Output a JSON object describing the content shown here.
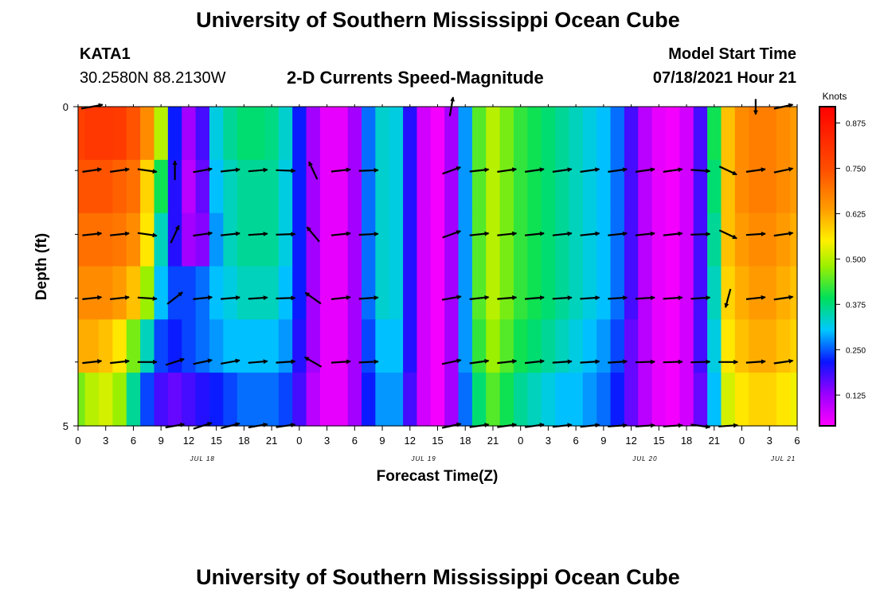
{
  "page_title": "University of Southern Mississippi Ocean Cube",
  "station": {
    "name": "KATA1",
    "coords": "30.2580N  88.2130W"
  },
  "model": {
    "label": "Model Start Time",
    "value": "07/18/2021 Hour 21"
  },
  "footer_title": "University of Southern Mississippi Ocean Cube",
  "colors": {
    "vector": "#000000",
    "frame": "#000000"
  },
  "chart_data": {
    "type": "heatmap",
    "title": "2-D Currents Speed-Magnitude",
    "xlabel": "Forecast Time(Z)",
    "ylabel": "Depth (ft)",
    "ylim": [
      0,
      5
    ],
    "y_ticks": [
      "0",
      "5"
    ],
    "x_tick_labels": [
      "0",
      "3",
      "6",
      "9",
      "12",
      "15",
      "18",
      "21",
      "0",
      "3",
      "6",
      "9",
      "12",
      "15",
      "18",
      "21",
      "0",
      "3",
      "6",
      "9",
      "12",
      "15",
      "18",
      "21",
      "0",
      "3",
      "6"
    ],
    "date_labels": [
      {
        "text": "JUL 18",
        "tick_index": 4.5
      },
      {
        "text": "JUL 19",
        "tick_index": 12.5
      },
      {
        "text": "JUL 20",
        "tick_index": 20.5
      },
      {
        "text": "JUL 21",
        "tick_index": 25.5
      }
    ],
    "x_hours_range": [
      0,
      78
    ],
    "colorbar": {
      "unit": "Knots",
      "min": 0.04,
      "max": 0.92,
      "ticks": [
        "0.125",
        "0.250",
        "0.375",
        "0.500",
        "0.625",
        "0.750",
        "0.875"
      ],
      "tick_values": [
        0.125,
        0.25,
        0.375,
        0.5,
        0.625,
        0.75,
        0.875
      ]
    },
    "speed_grid": {
      "depth_levels": 5,
      "hours": [
        0,
        1.5,
        3,
        4.5,
        6,
        7.5,
        9,
        10.5,
        12,
        13.5,
        15,
        16.5,
        18,
        19.5,
        21,
        22.5,
        24,
        25.5,
        27,
        28.5,
        30,
        31.5,
        33,
        34.5,
        36,
        37.5,
        39,
        40.5,
        42,
        43.5,
        45,
        46.5,
        48,
        49.5,
        51,
        52.5,
        54,
        55.5,
        57,
        58.5,
        60,
        61.5,
        63,
        64.5,
        66,
        67.5,
        69,
        70.5,
        72,
        73.5,
        75,
        76.5,
        78
      ],
      "values": [
        [
          0.78,
          0.8,
          0.8,
          0.79,
          0.74,
          0.66,
          0.5,
          0.22,
          0.12,
          0.18,
          0.32,
          0.36,
          0.38,
          0.38,
          0.37,
          0.33,
          0.22,
          0.12,
          0.06,
          0.06,
          0.12,
          0.26,
          0.33,
          0.32,
          0.2,
          0.08,
          0.05,
          0.12,
          0.28,
          0.44,
          0.5,
          0.46,
          0.42,
          0.4,
          0.38,
          0.36,
          0.34,
          0.32,
          0.3,
          0.26,
          0.18,
          0.1,
          0.06,
          0.05,
          0.08,
          0.18,
          0.4,
          0.6,
          0.66,
          0.68,
          0.68,
          0.66,
          0.64
        ],
        [
          0.74,
          0.74,
          0.74,
          0.72,
          0.7,
          0.58,
          0.4,
          0.2,
          0.1,
          0.16,
          0.3,
          0.34,
          0.36,
          0.36,
          0.36,
          0.32,
          0.22,
          0.12,
          0.06,
          0.06,
          0.12,
          0.26,
          0.33,
          0.32,
          0.2,
          0.08,
          0.05,
          0.12,
          0.28,
          0.44,
          0.5,
          0.46,
          0.42,
          0.4,
          0.38,
          0.36,
          0.34,
          0.32,
          0.3,
          0.26,
          0.18,
          0.1,
          0.06,
          0.05,
          0.08,
          0.18,
          0.38,
          0.6,
          0.66,
          0.68,
          0.68,
          0.66,
          0.64
        ],
        [
          0.7,
          0.7,
          0.7,
          0.69,
          0.66,
          0.56,
          0.34,
          0.2,
          0.12,
          0.14,
          0.28,
          0.34,
          0.36,
          0.36,
          0.36,
          0.32,
          0.22,
          0.12,
          0.06,
          0.06,
          0.12,
          0.26,
          0.33,
          0.32,
          0.2,
          0.08,
          0.05,
          0.12,
          0.28,
          0.44,
          0.5,
          0.46,
          0.42,
          0.4,
          0.38,
          0.36,
          0.34,
          0.32,
          0.3,
          0.26,
          0.18,
          0.1,
          0.06,
          0.05,
          0.08,
          0.18,
          0.36,
          0.6,
          0.64,
          0.66,
          0.66,
          0.64,
          0.62
        ],
        [
          0.66,
          0.66,
          0.66,
          0.64,
          0.6,
          0.48,
          0.3,
          0.24,
          0.24,
          0.26,
          0.3,
          0.32,
          0.34,
          0.34,
          0.34,
          0.3,
          0.22,
          0.12,
          0.06,
          0.06,
          0.12,
          0.26,
          0.33,
          0.32,
          0.2,
          0.08,
          0.05,
          0.12,
          0.28,
          0.44,
          0.5,
          0.46,
          0.42,
          0.4,
          0.38,
          0.36,
          0.34,
          0.32,
          0.3,
          0.26,
          0.18,
          0.1,
          0.06,
          0.05,
          0.08,
          0.18,
          0.34,
          0.58,
          0.62,
          0.64,
          0.64,
          0.62,
          0.6
        ],
        [
          0.62,
          0.62,
          0.6,
          0.56,
          0.46,
          0.34,
          0.24,
          0.22,
          0.24,
          0.26,
          0.28,
          0.3,
          0.3,
          0.3,
          0.3,
          0.28,
          0.2,
          0.12,
          0.06,
          0.06,
          0.12,
          0.24,
          0.3,
          0.3,
          0.2,
          0.08,
          0.05,
          0.12,
          0.28,
          0.42,
          0.48,
          0.44,
          0.4,
          0.38,
          0.36,
          0.34,
          0.32,
          0.3,
          0.28,
          0.24,
          0.16,
          0.1,
          0.06,
          0.05,
          0.08,
          0.18,
          0.32,
          0.56,
          0.6,
          0.62,
          0.62,
          0.6,
          0.58
        ],
        [
          0.46,
          0.5,
          0.52,
          0.48,
          0.36,
          0.24,
          0.18,
          0.16,
          0.18,
          0.2,
          0.22,
          0.24,
          0.26,
          0.26,
          0.26,
          0.24,
          0.18,
          0.1,
          0.06,
          0.06,
          0.12,
          0.22,
          0.28,
          0.28,
          0.18,
          0.08,
          0.05,
          0.12,
          0.26,
          0.38,
          0.44,
          0.4,
          0.36,
          0.34,
          0.32,
          0.3,
          0.3,
          0.28,
          0.26,
          0.22,
          0.16,
          0.1,
          0.06,
          0.05,
          0.08,
          0.16,
          0.3,
          0.52,
          0.56,
          0.58,
          0.58,
          0.56,
          0.54
        ]
      ]
    },
    "vectors": {
      "depth_rows": 6,
      "hours": [
        1.5,
        4.5,
        7.5,
        10.5,
        13.5,
        16.5,
        19.5,
        22.5,
        25.5,
        28.5,
        31.5,
        34.5,
        37.5,
        40.5,
        43.5,
        46.5,
        49.5,
        52.5,
        55.5,
        58.5,
        61.5,
        64.5,
        67.5,
        70.5,
        73.5,
        76.5
      ],
      "note": "direction in degrees (0=east, 90=north), length relative 0..1",
      "dir_deg": [
        [
          10,
          12,
          0,
          0,
          0,
          0,
          0,
          0,
          0,
          0,
          0,
          0,
          0,
          80,
          0,
          10,
          0,
          0,
          0,
          0,
          0,
          0,
          0,
          0,
          -90,
          12
        ],
        [
          8,
          8,
          -8,
          90,
          10,
          6,
          5,
          -2,
          115,
          6,
          2,
          0,
          0,
          20,
          6,
          8,
          8,
          8,
          8,
          8,
          8,
          8,
          -4,
          -25,
          8,
          12
        ],
        [
          6,
          6,
          -8,
          65,
          8,
          6,
          4,
          2,
          130,
          6,
          3,
          0,
          0,
          20,
          6,
          6,
          6,
          6,
          6,
          6,
          6,
          6,
          2,
          -25,
          4,
          8
        ],
        [
          6,
          6,
          -4,
          38,
          6,
          5,
          4,
          2,
          145,
          6,
          4,
          0,
          0,
          10,
          6,
          5,
          5,
          4,
          4,
          4,
          4,
          4,
          4,
          -105,
          6,
          8
        ],
        [
          6,
          6,
          0,
          18,
          12,
          10,
          5,
          4,
          150,
          4,
          3,
          2,
          0,
          12,
          8,
          6,
          6,
          4,
          4,
          4,
          2,
          2,
          2,
          0,
          4,
          8
        ],
        [
          0,
          0,
          0,
          10,
          18,
          14,
          10,
          8,
          20,
          0,
          0,
          0,
          0,
          12,
          8,
          8,
          8,
          6,
          6,
          4,
          4,
          4,
          -8,
          4,
          0,
          0
        ]
      ],
      "len": [
        [
          0.85,
          0.0,
          0.0,
          0.0,
          0.0,
          0.0,
          0.0,
          0.0,
          0.0,
          0.0,
          0.0,
          0.0,
          0.0,
          0.75,
          0.0,
          0.0,
          0.0,
          0.0,
          0.0,
          0.0,
          0.0,
          0.0,
          0.0,
          0.0,
          0.6,
          0.75
        ],
        [
          0.75,
          0.75,
          0.75,
          0.75,
          0.75,
          0.75,
          0.75,
          0.75,
          0.75,
          0.75,
          0.75,
          0.0,
          0.0,
          0.75,
          0.75,
          0.75,
          0.75,
          0.75,
          0.75,
          0.75,
          0.75,
          0.75,
          0.75,
          0.75,
          0.75,
          0.75
        ],
        [
          0.75,
          0.75,
          0.75,
          0.75,
          0.75,
          0.75,
          0.75,
          0.75,
          0.75,
          0.75,
          0.75,
          0.0,
          0.0,
          0.75,
          0.75,
          0.75,
          0.75,
          0.75,
          0.75,
          0.75,
          0.75,
          0.75,
          0.75,
          0.75,
          0.75,
          0.75
        ],
        [
          0.75,
          0.75,
          0.75,
          0.75,
          0.75,
          0.75,
          0.75,
          0.75,
          0.75,
          0.75,
          0.75,
          0.0,
          0.0,
          0.75,
          0.75,
          0.75,
          0.75,
          0.75,
          0.75,
          0.75,
          0.75,
          0.75,
          0.75,
          0.75,
          0.75,
          0.75
        ],
        [
          0.75,
          0.75,
          0.75,
          0.75,
          0.75,
          0.75,
          0.75,
          0.75,
          0.75,
          0.75,
          0.75,
          0.0,
          0.0,
          0.75,
          0.75,
          0.75,
          0.75,
          0.75,
          0.75,
          0.75,
          0.75,
          0.75,
          0.75,
          0.75,
          0.75,
          0.75
        ],
        [
          0.0,
          0.0,
          0.0,
          0.75,
          0.75,
          0.75,
          0.75,
          0.75,
          0.0,
          0.0,
          0.0,
          0.0,
          0.0,
          0.75,
          0.75,
          0.75,
          0.75,
          0.75,
          0.75,
          0.75,
          0.75,
          0.75,
          0.75,
          0.75,
          0.0,
          0.0
        ]
      ]
    }
  }
}
